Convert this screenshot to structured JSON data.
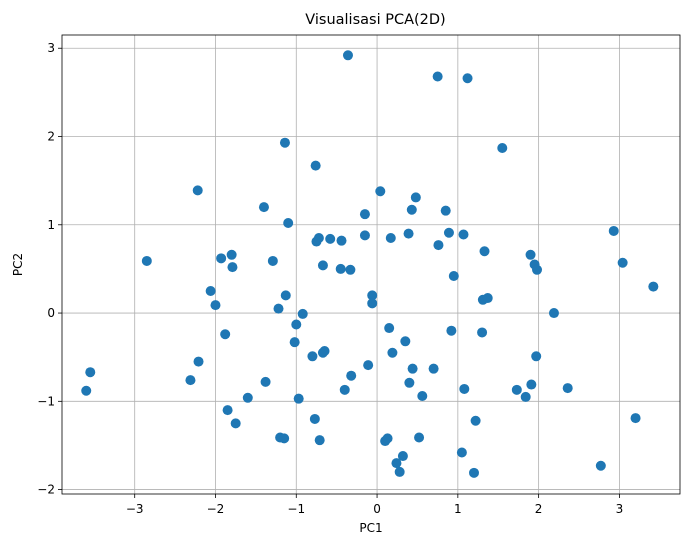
{
  "chart_data": {
    "type": "scatter",
    "title": "Visualisasi PCA(2D)",
    "xlabel": "PC1",
    "ylabel": "PC2",
    "xlim": [
      -3.9,
      3.75
    ],
    "ylim": [
      -2.05,
      3.15
    ],
    "xticks": [
      -3,
      -2,
      -1,
      0,
      1,
      2,
      3
    ],
    "yticks": [
      -2,
      -1,
      0,
      1,
      2,
      3
    ],
    "xtick_labels": [
      "−3",
      "−2",
      "−1",
      "0",
      "1",
      "2",
      "3"
    ],
    "ytick_labels": [
      "−2",
      "−1",
      "0",
      "1",
      "2",
      "3"
    ],
    "grid": true,
    "marker_color": "#1f77b4",
    "points": [
      [
        -3.6,
        -0.88
      ],
      [
        -3.55,
        -0.67
      ],
      [
        -2.85,
        0.59
      ],
      [
        -2.31,
        -0.76
      ],
      [
        -2.22,
        1.39
      ],
      [
        -2.21,
        -0.55
      ],
      [
        -2.06,
        0.25
      ],
      [
        -2.0,
        0.09
      ],
      [
        -1.93,
        0.62
      ],
      [
        -1.88,
        -0.24
      ],
      [
        -1.85,
        -1.1
      ],
      [
        -1.8,
        0.66
      ],
      [
        -1.79,
        0.52
      ],
      [
        -1.75,
        -1.25
      ],
      [
        -1.6,
        -0.96
      ],
      [
        -1.4,
        1.2
      ],
      [
        -1.38,
        -0.78
      ],
      [
        -1.29,
        0.59
      ],
      [
        -1.22,
        0.05
      ],
      [
        -1.2,
        -1.41
      ],
      [
        -1.15,
        -1.42
      ],
      [
        -1.14,
        1.93
      ],
      [
        -1.13,
        0.2
      ],
      [
        -1.1,
        1.02
      ],
      [
        -1.02,
        -0.33
      ],
      [
        -1.0,
        -0.13
      ],
      [
        -0.97,
        -0.97
      ],
      [
        -0.92,
        -0.01
      ],
      [
        -0.8,
        -0.49
      ],
      [
        -0.77,
        -1.2
      ],
      [
        -0.76,
        1.67
      ],
      [
        -0.75,
        0.81
      ],
      [
        -0.72,
        0.85
      ],
      [
        -0.71,
        -1.44
      ],
      [
        -0.67,
        0.54
      ],
      [
        -0.67,
        -0.45
      ],
      [
        -0.65,
        -0.43
      ],
      [
        -0.58,
        0.84
      ],
      [
        -0.45,
        0.5
      ],
      [
        -0.44,
        0.82
      ],
      [
        -0.4,
        -0.87
      ],
      [
        -0.36,
        2.92
      ],
      [
        -0.33,
        0.49
      ],
      [
        -0.32,
        -0.71
      ],
      [
        -0.15,
        1.12
      ],
      [
        -0.15,
        0.88
      ],
      [
        -0.11,
        -0.59
      ],
      [
        -0.06,
        0.2
      ],
      [
        -0.06,
        0.11
      ],
      [
        0.04,
        1.38
      ],
      [
        0.1,
        -1.45
      ],
      [
        0.13,
        -1.42
      ],
      [
        0.15,
        -0.17
      ],
      [
        0.17,
        0.85
      ],
      [
        0.19,
        -0.45
      ],
      [
        0.24,
        -1.7
      ],
      [
        0.28,
        -1.8
      ],
      [
        0.32,
        -1.62
      ],
      [
        0.35,
        -0.32
      ],
      [
        0.39,
        0.9
      ],
      [
        0.4,
        -0.79
      ],
      [
        0.43,
        1.17
      ],
      [
        0.44,
        -0.63
      ],
      [
        0.48,
        1.31
      ],
      [
        0.52,
        -1.41
      ],
      [
        0.56,
        -0.94
      ],
      [
        0.7,
        -0.63
      ],
      [
        0.75,
        2.68
      ],
      [
        0.76,
        0.77
      ],
      [
        0.85,
        1.16
      ],
      [
        0.89,
        0.91
      ],
      [
        0.92,
        -0.2
      ],
      [
        0.95,
        0.42
      ],
      [
        1.05,
        -1.58
      ],
      [
        1.07,
        0.89
      ],
      [
        1.08,
        -0.86
      ],
      [
        1.12,
        2.66
      ],
      [
        1.2,
        -1.81
      ],
      [
        1.22,
        -1.22
      ],
      [
        1.3,
        -0.22
      ],
      [
        1.31,
        0.15
      ],
      [
        1.33,
        0.7
      ],
      [
        1.37,
        0.17
      ],
      [
        1.55,
        1.87
      ],
      [
        1.73,
        -0.87
      ],
      [
        1.84,
        -0.95
      ],
      [
        1.9,
        0.66
      ],
      [
        1.91,
        -0.81
      ],
      [
        1.95,
        0.55
      ],
      [
        1.97,
        -0.49
      ],
      [
        1.98,
        0.49
      ],
      [
        2.19,
        0.0
      ],
      [
        2.36,
        -0.85
      ],
      [
        2.77,
        -1.73
      ],
      [
        2.93,
        0.93
      ],
      [
        3.04,
        0.57
      ],
      [
        3.2,
        -1.19
      ],
      [
        3.42,
        0.3
      ]
    ]
  }
}
